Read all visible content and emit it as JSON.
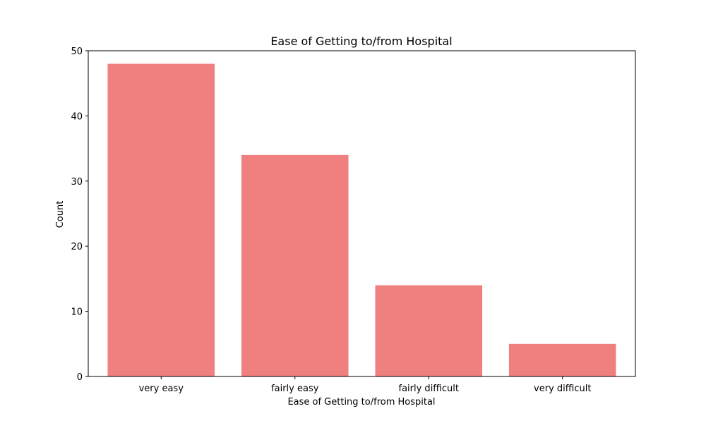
{
  "chart_data": {
    "type": "bar",
    "title": "Ease of Getting to/from Hospital",
    "xlabel": "Ease of Getting to/from Hospital",
    "ylabel": "Count",
    "categories": [
      "very easy",
      "fairly easy",
      "fairly difficult",
      "very difficult"
    ],
    "values": [
      48,
      34,
      14,
      5
    ],
    "ylim": [
      0,
      50
    ],
    "yticks": [
      "0",
      "10",
      "20",
      "30",
      "40",
      "50"
    ],
    "bar_color": "#f08080",
    "grid": false,
    "legend": "none"
  }
}
